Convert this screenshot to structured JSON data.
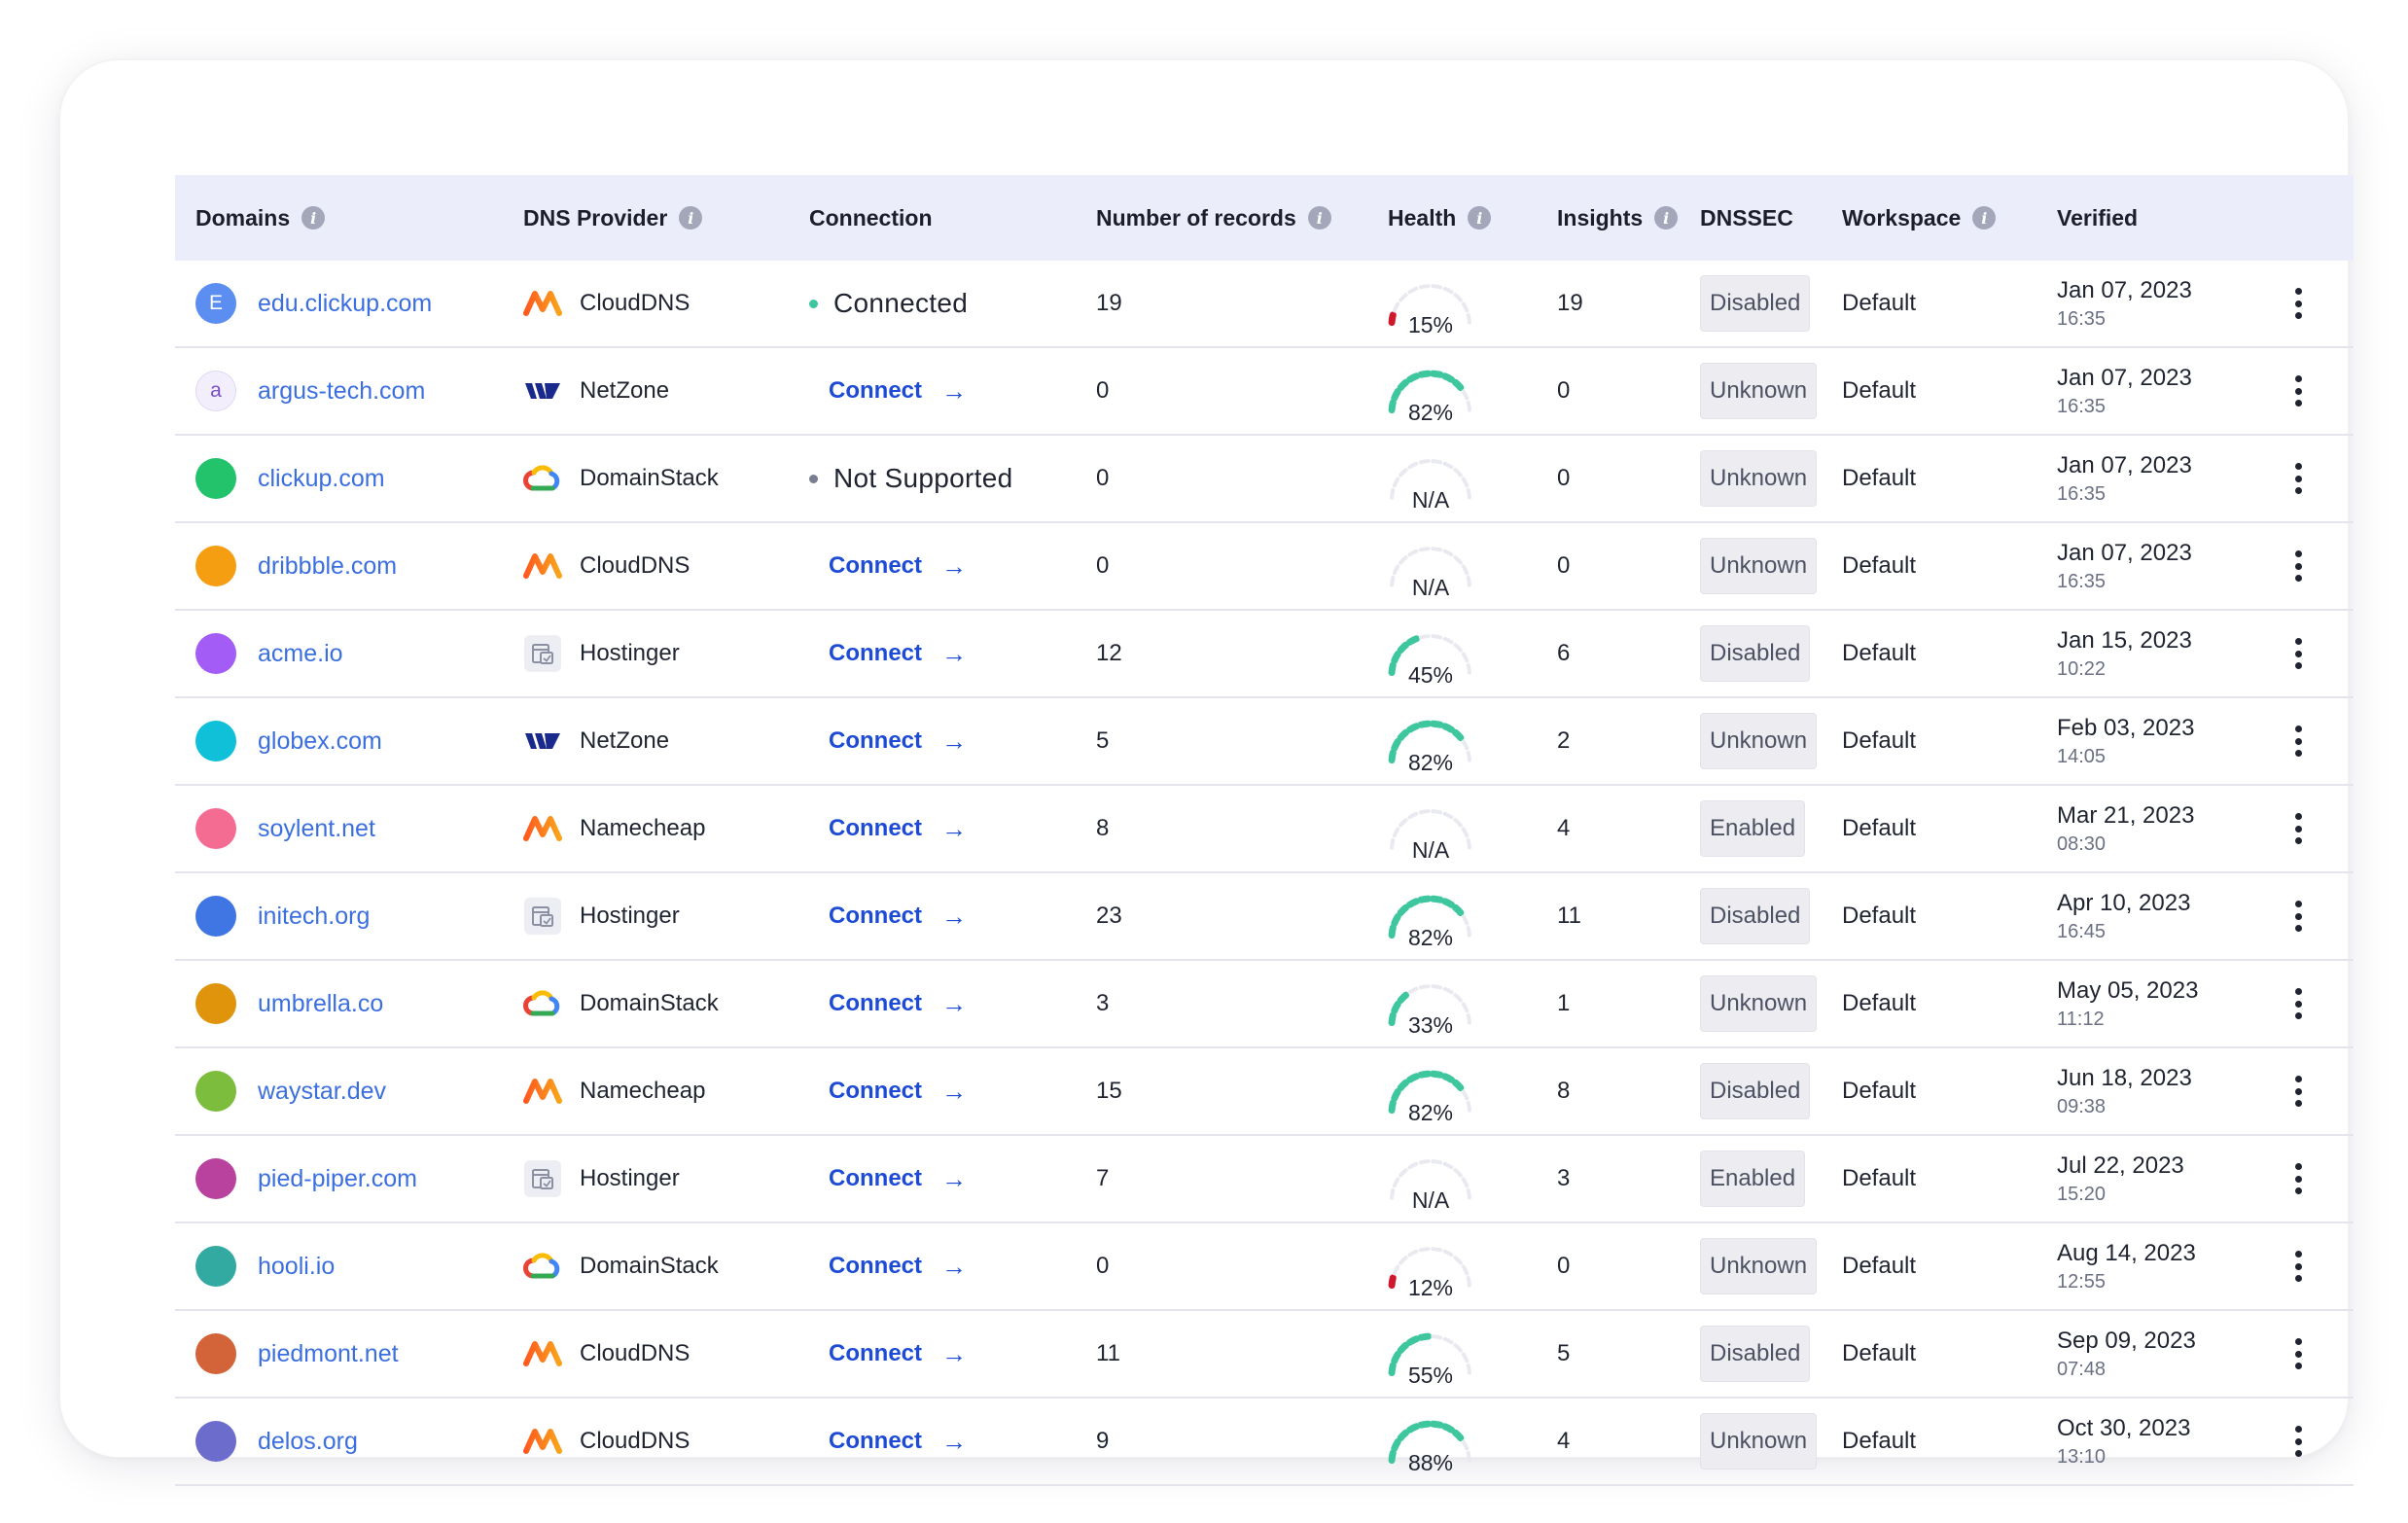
{
  "columns": [
    {
      "key": "domain",
      "label": "Domains",
      "info": true
    },
    {
      "key": "provider",
      "label": "DNS Provider",
      "info": true
    },
    {
      "key": "connection",
      "label": "Connection",
      "info": false
    },
    {
      "key": "records",
      "label": "Number of records",
      "info": true
    },
    {
      "key": "health",
      "label": "Health",
      "info": true
    },
    {
      "key": "insights",
      "label": "Insights",
      "info": true
    },
    {
      "key": "dnssec",
      "label": "DNSSEC",
      "info": false
    },
    {
      "key": "workspace",
      "label": "Workspace",
      "info": true
    },
    {
      "key": "verified",
      "label": "Verified",
      "info": false
    }
  ],
  "providers": {
    "CloudDNS": {
      "icon": "cloud-dns-logo-icon"
    },
    "NetZone": {
      "icon": "netzone-logo-icon"
    },
    "DomainStack": {
      "icon": "domainstack-cloud-icon"
    },
    "Hostinger": {
      "icon": "hostinger-server-icon"
    },
    "Namecheap": {
      "icon": "namecheap-logo-icon"
    }
  },
  "connect_label": "Connect",
  "colors": {
    "link": "#3b6fe0",
    "connect": "#1d4bd6",
    "health_good": "#3ec79e",
    "health_bad": "#d0182c",
    "health_track": "#e9eaf0",
    "connected_dot": "#3ec79e",
    "unsupported_dot": "#7a7f90"
  },
  "rows": [
    {
      "domain": "edu.clickup.com",
      "initial": "E",
      "avatar_color": "#5b8ef0",
      "avatar_text_color": "#ffffff",
      "provider": "CloudDNS",
      "connection_status": "connected",
      "connection_label": "Connected",
      "records": "19",
      "health_text": "15%",
      "health_value": 15,
      "insights": "19",
      "dnssec": "Disabled",
      "workspace": "Default",
      "verified_date": "Jan 07, 2023",
      "verified_time": "16:35"
    },
    {
      "domain": "argus-tech.com",
      "initial": "a",
      "avatar_color": "#f3eefb",
      "avatar_text_color": "#7a4fc7",
      "provider": "NetZone",
      "connection_status": "connect",
      "records": "0",
      "health_text": "82%",
      "health_value": 82,
      "insights": "0",
      "dnssec": "Unknown",
      "workspace": "Default",
      "verified_date": "Jan 07, 2023",
      "verified_time": "16:35"
    },
    {
      "domain": "clickup.com",
      "initial": "",
      "avatar_color": "#22c36b",
      "avatar_text_color": "#ffffff",
      "provider": "DomainStack",
      "connection_status": "unsupported",
      "connection_label": "Not Supported",
      "records": "0",
      "health_text": "N/A",
      "health_value": null,
      "insights": "0",
      "dnssec": "Unknown",
      "workspace": "Default",
      "verified_date": "Jan 07, 2023",
      "verified_time": "16:35"
    },
    {
      "domain": "dribbble.com",
      "initial": "",
      "avatar_color": "#f59e12",
      "avatar_text_color": "#ffffff",
      "provider": "CloudDNS",
      "connection_status": "connect",
      "records": "0",
      "health_text": "N/A",
      "health_value": null,
      "insights": "0",
      "dnssec": "Unknown",
      "workspace": "Default",
      "verified_date": "Jan 07, 2023",
      "verified_time": "16:35"
    },
    {
      "domain": "acme.io",
      "initial": "",
      "avatar_color": "#a35cf5",
      "avatar_text_color": "#ffffff",
      "provider": "Hostinger",
      "connection_status": "connect",
      "records": "12",
      "health_text": "45%",
      "health_value": 45,
      "insights": "6",
      "dnssec": "Disabled",
      "workspace": "Default",
      "verified_date": "Jan 15, 2023",
      "verified_time": "10:22"
    },
    {
      "domain": "globex.com",
      "initial": "",
      "avatar_color": "#10bfd8",
      "avatar_text_color": "#ffffff",
      "provider": "NetZone",
      "connection_status": "connect",
      "records": "5",
      "health_text": "82%",
      "health_value": 82,
      "insights": "2",
      "dnssec": "Unknown",
      "workspace": "Default",
      "verified_date": "Feb 03, 2023",
      "verified_time": "14:05"
    },
    {
      "domain": "soylent.net",
      "initial": "",
      "avatar_color": "#f56c92",
      "avatar_text_color": "#ffffff",
      "provider": "Namecheap",
      "connection_status": "connect",
      "records": "8",
      "health_text": "N/A",
      "health_value": null,
      "insights": "4",
      "dnssec": "Enabled",
      "workspace": "Default",
      "verified_date": "Mar 21, 2023",
      "verified_time": "08:30"
    },
    {
      "domain": "initech.org",
      "initial": "",
      "avatar_color": "#3f76e4",
      "avatar_text_color": "#ffffff",
      "provider": "Hostinger",
      "connection_status": "connect",
      "records": "23",
      "health_text": "82%",
      "health_value": 82,
      "insights": "11",
      "dnssec": "Disabled",
      "workspace": "Default",
      "verified_date": "Apr 10, 2023",
      "verified_time": "16:45"
    },
    {
      "domain": "umbrella.co",
      "initial": "",
      "avatar_color": "#e0940b",
      "avatar_text_color": "#ffffff",
      "provider": "DomainStack",
      "connection_status": "connect",
      "records": "3",
      "health_text": "33%",
      "health_value": 33,
      "insights": "1",
      "dnssec": "Unknown",
      "workspace": "Default",
      "verified_date": "May 05, 2023",
      "verified_time": "11:12"
    },
    {
      "domain": "waystar.dev",
      "initial": "",
      "avatar_color": "#7cbd3d",
      "avatar_text_color": "#ffffff",
      "provider": "Namecheap",
      "connection_status": "connect",
      "records": "15",
      "health_text": "82%",
      "health_value": 82,
      "insights": "8",
      "dnssec": "Disabled",
      "workspace": "Default",
      "verified_date": "Jun 18, 2023",
      "verified_time": "09:38"
    },
    {
      "domain": "pied-piper.com",
      "initial": "",
      "avatar_color": "#b9429e",
      "avatar_text_color": "#ffffff",
      "provider": "Hostinger",
      "connection_status": "connect",
      "records": "7",
      "health_text": "N/A",
      "health_value": null,
      "insights": "3",
      "dnssec": "Enabled",
      "workspace": "Default",
      "verified_date": "Jul 22, 2023",
      "verified_time": "15:20"
    },
    {
      "domain": "hooli.io",
      "initial": "",
      "avatar_color": "#32aaa2",
      "avatar_text_color": "#ffffff",
      "provider": "DomainStack",
      "connection_status": "connect",
      "records": "0",
      "health_text": "12%",
      "health_value": 12,
      "insights": "0",
      "dnssec": "Unknown",
      "workspace": "Default",
      "verified_date": "Aug 14, 2023",
      "verified_time": "12:55"
    },
    {
      "domain": "piedmont.net",
      "initial": "",
      "avatar_color": "#d3643a",
      "avatar_text_color": "#ffffff",
      "provider": "CloudDNS",
      "connection_status": "connect",
      "records": "11",
      "health_text": "55%",
      "health_value": 55,
      "insights": "5",
      "dnssec": "Disabled",
      "workspace": "Default",
      "verified_date": "Sep 09, 2023",
      "verified_time": "07:48"
    },
    {
      "domain": "delos.org",
      "initial": "",
      "avatar_color": "#6c6ccd",
      "avatar_text_color": "#ffffff",
      "provider": "CloudDNS",
      "connection_status": "connect",
      "records": "9",
      "health_text": "88%",
      "health_value": 88,
      "insights": "4",
      "dnssec": "Unknown",
      "workspace": "Default",
      "verified_date": "Oct 30, 2023",
      "verified_time": "13:10"
    }
  ]
}
